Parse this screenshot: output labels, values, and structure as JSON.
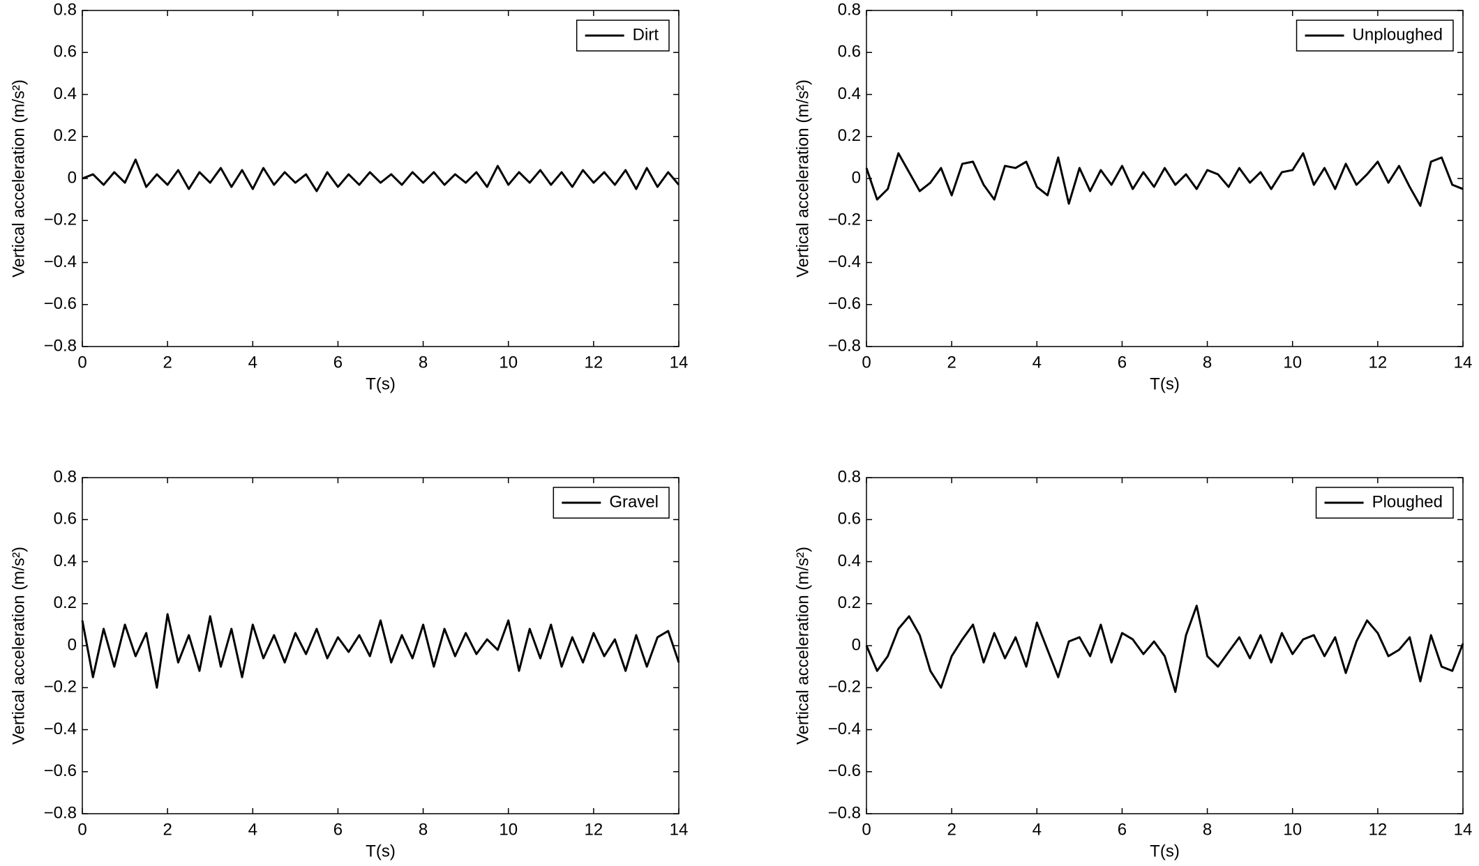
{
  "chart_data": [
    {
      "type": "line",
      "xlabel": "T(s)",
      "ylabel": "Vertical acceleration (m/s²)",
      "legend": "upper right",
      "xlim": [
        0,
        14
      ],
      "xticks": [
        0,
        2,
        4,
        6,
        8,
        10,
        12,
        14
      ],
      "ylim": [
        -0.8,
        0.8
      ],
      "yticks": [
        {
          "value": -0.8,
          "label": "−0.8"
        },
        {
          "value": -0.6,
          "label": "−0.6"
        },
        {
          "value": -0.4,
          "label": "−0.4"
        },
        {
          "value": -0.2,
          "label": "−0.2"
        },
        0,
        0.2,
        0.4,
        0.6,
        0.8
      ],
      "x": [
        0,
        0.25,
        0.5,
        0.75,
        1,
        1.25,
        1.5,
        1.75,
        2,
        2.25,
        2.5,
        2.75,
        3,
        3.25,
        3.5,
        3.75,
        4,
        4.25,
        4.5,
        4.75,
        5,
        5.25,
        5.5,
        5.75,
        6,
        6.25,
        6.5,
        6.75,
        7,
        7.25,
        7.5,
        7.75,
        8,
        8.25,
        8.5,
        8.75,
        9,
        9.25,
        9.5,
        9.75,
        10,
        10.25,
        10.5,
        10.75,
        11,
        11.25,
        11.5,
        11.75,
        12,
        12.25,
        12.5,
        12.75,
        13,
        13.25,
        13.5,
        13.75,
        14
      ],
      "series": [
        {
          "name": "Dirt",
          "color": "#000000",
          "values": [
            0,
            0.02,
            -0.03,
            0.03,
            -0.02,
            0.09,
            -0.04,
            0.02,
            -0.03,
            0.04,
            -0.05,
            0.03,
            -0.02,
            0.05,
            -0.04,
            0.04,
            -0.05,
            0.05,
            -0.03,
            0.03,
            -0.02,
            0.02,
            -0.06,
            0.03,
            -0.04,
            0.02,
            -0.03,
            0.03,
            -0.02,
            0.02,
            -0.03,
            0.03,
            -0.02,
            0.03,
            -0.03,
            0.02,
            -0.02,
            0.03,
            -0.04,
            0.06,
            -0.03,
            0.03,
            -0.02,
            0.04,
            -0.03,
            0.03,
            -0.04,
            0.04,
            -0.02,
            0.03,
            -0.03,
            0.04,
            -0.05,
            0.05,
            -0.04,
            0.03,
            -0.03
          ]
        }
      ]
    },
    {
      "type": "line",
      "xlabel": "T(s)",
      "ylabel": "Vertical acceleration (m/s²)",
      "legend": "upper right",
      "xlim": [
        0,
        14
      ],
      "xticks": [
        0,
        2,
        4,
        6,
        8,
        10,
        12,
        14
      ],
      "ylim": [
        -0.8,
        0.8
      ],
      "yticks": [
        {
          "value": -0.8,
          "label": "−0.8"
        },
        {
          "value": -0.6,
          "label": "−0.6"
        },
        {
          "value": -0.4,
          "label": "−0.4"
        },
        {
          "value": -0.2,
          "label": "−0.2"
        },
        0,
        0.2,
        0.4,
        0.6,
        0.8
      ],
      "x": [
        0,
        0.25,
        0.5,
        0.75,
        1,
        1.25,
        1.5,
        1.75,
        2,
        2.25,
        2.5,
        2.75,
        3,
        3.25,
        3.5,
        3.75,
        4,
        4.25,
        4.5,
        4.75,
        5,
        5.25,
        5.5,
        5.75,
        6,
        6.25,
        6.5,
        6.75,
        7,
        7.25,
        7.5,
        7.75,
        8,
        8.25,
        8.5,
        8.75,
        9,
        9.25,
        9.5,
        9.75,
        10,
        10.25,
        10.5,
        10.75,
        11,
        11.25,
        11.5,
        11.75,
        12,
        12.25,
        12.5,
        12.75,
        13,
        13.25,
        13.5,
        13.75,
        14
      ],
      "series": [
        {
          "name": "Unploughed",
          "color": "#000000",
          "values": [
            0.05,
            -0.1,
            -0.05,
            0.12,
            0.03,
            -0.06,
            -0.02,
            0.05,
            -0.08,
            0.07,
            0.08,
            -0.03,
            -0.1,
            0.06,
            0.05,
            0.08,
            -0.04,
            -0.08,
            0.1,
            -0.12,
            0.05,
            -0.06,
            0.04,
            -0.03,
            0.06,
            -0.05,
            0.03,
            -0.04,
            0.05,
            -0.03,
            0.02,
            -0.05,
            0.04,
            0.02,
            -0.04,
            0.05,
            -0.02,
            0.03,
            -0.05,
            0.03,
            0.04,
            0.12,
            -0.03,
            0.05,
            -0.05,
            0.07,
            -0.03,
            0.02,
            0.08,
            -0.02,
            0.06,
            -0.04,
            -0.13,
            0.08,
            0.1,
            -0.03,
            -0.05
          ]
        }
      ]
    },
    {
      "type": "line",
      "xlabel": "T(s)",
      "ylabel": "Vertical acceleration (m/s²)",
      "legend": "upper right",
      "xlim": [
        0,
        14
      ],
      "xticks": [
        0,
        2,
        4,
        6,
        8,
        10,
        12,
        14
      ],
      "ylim": [
        -0.8,
        0.8
      ],
      "yticks": [
        {
          "value": -0.8,
          "label": "−0.8"
        },
        {
          "value": -0.6,
          "label": "−0.6"
        },
        {
          "value": -0.4,
          "label": "−0.4"
        },
        {
          "value": -0.2,
          "label": "−0.2"
        },
        0,
        0.2,
        0.4,
        0.6,
        0.8
      ],
      "x": [
        0,
        0.25,
        0.5,
        0.75,
        1,
        1.25,
        1.5,
        1.75,
        2,
        2.25,
        2.5,
        2.75,
        3,
        3.25,
        3.5,
        3.75,
        4,
        4.25,
        4.5,
        4.75,
        5,
        5.25,
        5.5,
        5.75,
        6,
        6.25,
        6.5,
        6.75,
        7,
        7.25,
        7.5,
        7.75,
        8,
        8.25,
        8.5,
        8.75,
        9,
        9.25,
        9.5,
        9.75,
        10,
        10.25,
        10.5,
        10.75,
        11,
        11.25,
        11.5,
        11.75,
        12,
        12.25,
        12.5,
        12.75,
        13,
        13.25,
        13.5,
        13.75,
        14
      ],
      "series": [
        {
          "name": "Gravel",
          "color": "#000000",
          "values": [
            0.12,
            -0.15,
            0.08,
            -0.1,
            0.1,
            -0.05,
            0.06,
            -0.2,
            0.15,
            -0.08,
            0.05,
            -0.12,
            0.14,
            -0.1,
            0.08,
            -0.15,
            0.1,
            -0.06,
            0.05,
            -0.08,
            0.06,
            -0.04,
            0.08,
            -0.06,
            0.04,
            -0.03,
            0.05,
            -0.05,
            0.12,
            -0.08,
            0.05,
            -0.06,
            0.1,
            -0.1,
            0.08,
            -0.05,
            0.06,
            -0.04,
            0.03,
            -0.02,
            0.12,
            -0.12,
            0.08,
            -0.06,
            0.1,
            -0.1,
            0.04,
            -0.08,
            0.06,
            -0.05,
            0.03,
            -0.12,
            0.05,
            -0.1,
            0.04,
            0.07,
            -0.08
          ]
        }
      ]
    },
    {
      "type": "line",
      "xlabel": "T(s)",
      "ylabel": "Vertical acceleration (m/s²)",
      "legend": "upper right",
      "xlim": [
        0,
        14
      ],
      "xticks": [
        0,
        2,
        4,
        6,
        8,
        10,
        12,
        14
      ],
      "ylim": [
        -0.8,
        0.8
      ],
      "yticks": [
        {
          "value": -0.8,
          "label": "−0.8"
        },
        {
          "value": -0.6,
          "label": "−0.6"
        },
        {
          "value": -0.4,
          "label": "−0.4"
        },
        {
          "value": -0.2,
          "label": "−0.2"
        },
        0,
        0.2,
        0.4,
        0.6,
        0.8
      ],
      "x": [
        0,
        0.25,
        0.5,
        0.75,
        1,
        1.25,
        1.5,
        1.75,
        2,
        2.25,
        2.5,
        2.75,
        3,
        3.25,
        3.5,
        3.75,
        4,
        4.25,
        4.5,
        4.75,
        5,
        5.25,
        5.5,
        5.75,
        6,
        6.25,
        6.5,
        6.75,
        7,
        7.25,
        7.5,
        7.75,
        8,
        8.25,
        8.5,
        8.75,
        9,
        9.25,
        9.5,
        9.75,
        10,
        10.25,
        10.5,
        10.75,
        11,
        11.25,
        11.5,
        11.75,
        12,
        12.25,
        12.5,
        12.75,
        13,
        13.25,
        13.5,
        13.75,
        14
      ],
      "series": [
        {
          "name": "Ploughed",
          "color": "#000000",
          "values": [
            0,
            -0.12,
            -0.05,
            0.08,
            0.14,
            0.05,
            -0.12,
            -0.2,
            -0.05,
            0.03,
            0.1,
            -0.08,
            0.06,
            -0.06,
            0.04,
            -0.1,
            0.11,
            -0.02,
            -0.15,
            0.02,
            0.04,
            -0.05,
            0.1,
            -0.08,
            0.06,
            0.03,
            -0.04,
            0.02,
            -0.05,
            -0.22,
            0.05,
            0.19,
            -0.05,
            -0.1,
            -0.03,
            0.04,
            -0.06,
            0.05,
            -0.08,
            0.06,
            -0.04,
            0.03,
            0.05,
            -0.05,
            0.04,
            -0.13,
            0.02,
            0.12,
            0.06,
            -0.05,
            -0.02,
            0.04,
            -0.17,
            0.05,
            -0.1,
            -0.12,
            0.01
          ]
        }
      ]
    }
  ]
}
